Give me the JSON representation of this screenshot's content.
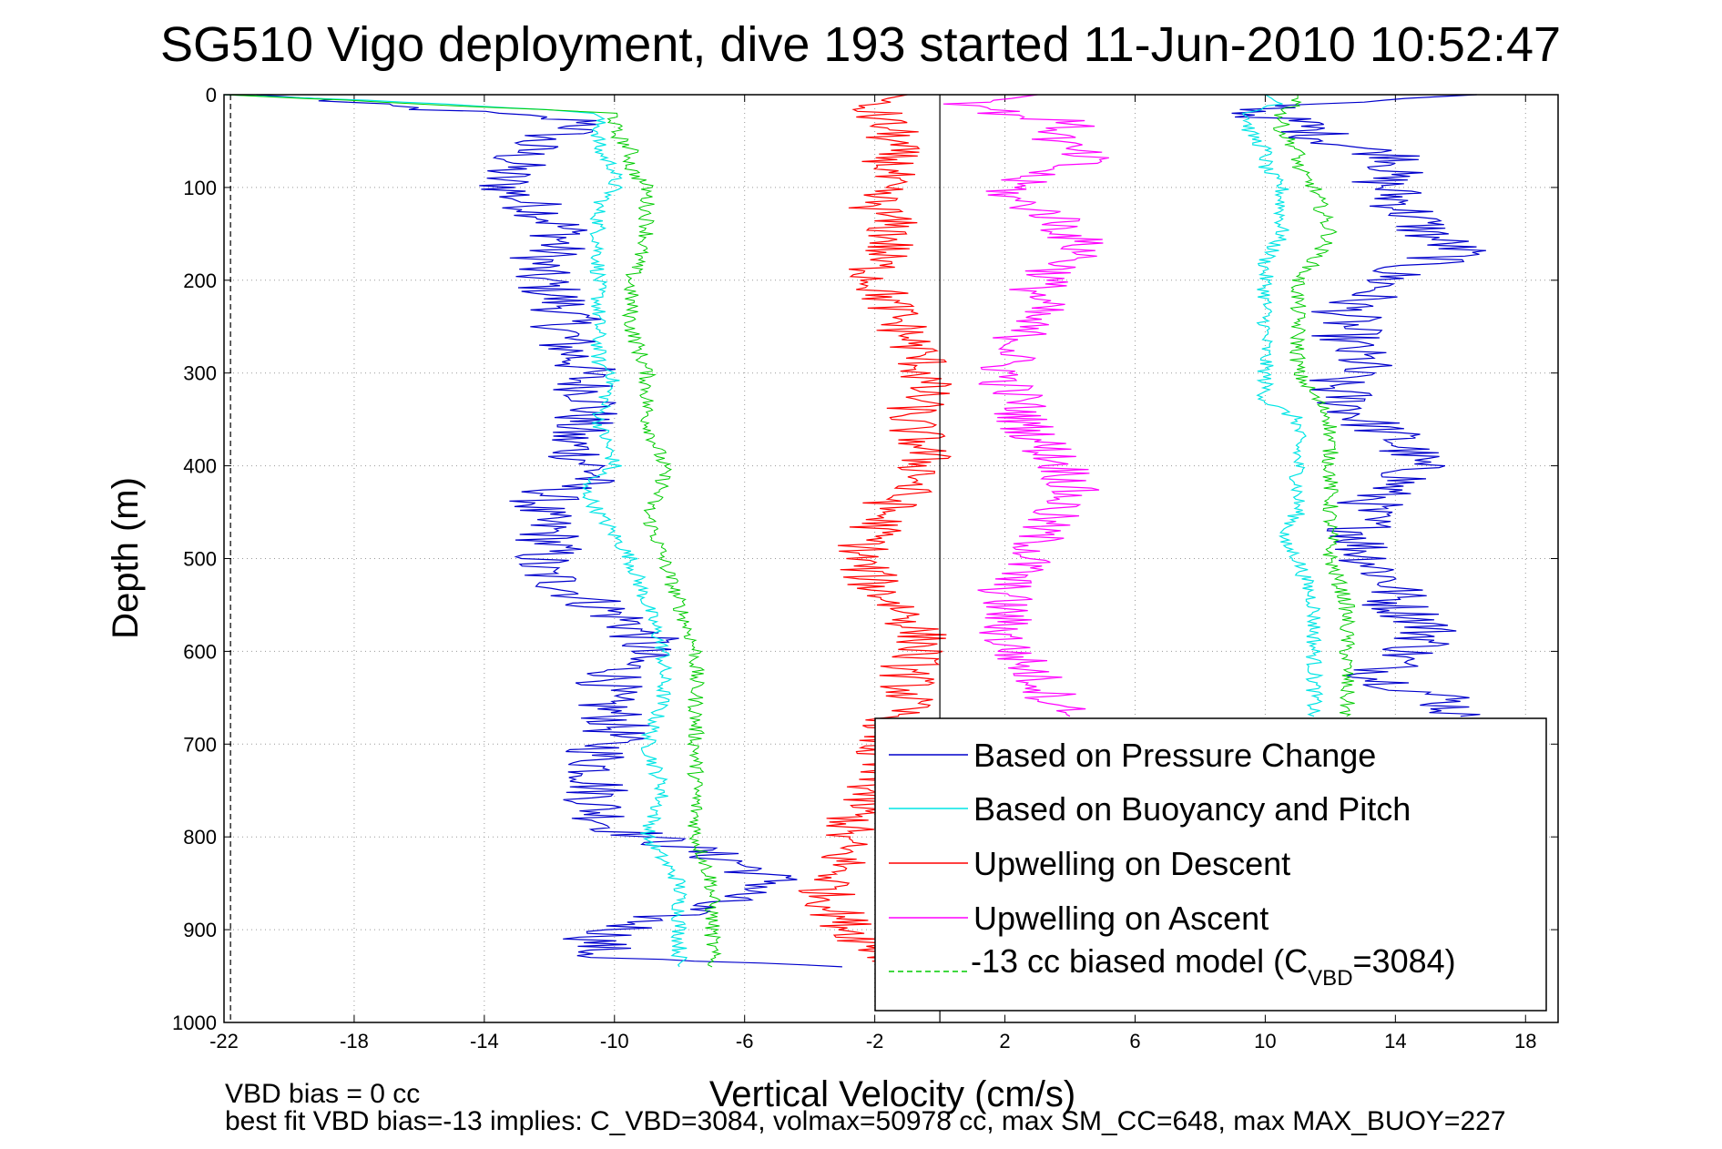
{
  "chart_data": {
    "type": "line",
    "title": "SG510 Vigo deployment, dive 193 started 11-Jun-2010 10:52:47",
    "xlabel": "Vertical Velocity (cm/s)",
    "ylabel": "Depth (m)",
    "xlim": [
      -22,
      19
    ],
    "ylim": [
      0,
      1000
    ],
    "y_reversed": true,
    "grid": true,
    "x_ticks": [
      -22,
      -18,
      -14,
      -10,
      -6,
      -2,
      2,
      6,
      10,
      14,
      18
    ],
    "y_ticks": [
      0,
      100,
      200,
      300,
      400,
      500,
      600,
      700,
      800,
      900,
      1000
    ],
    "legend_position": "bottom-right",
    "legend": {
      "pressure": "Based on Pressure Change",
      "buoyancy": "Based on Buoyancy and Pitch",
      "upwell_desc": "Upwelling on Descent",
      "upwell_asc": "Upwelling on Ascent",
      "model_prefix": "-13 cc biased model (C",
      "model_sub": "VBD",
      "model_suffix": "=3084)"
    },
    "footer": {
      "line1": "VBD bias = 0 cc",
      "line2": "best fit VBD bias=-13 implies: C_VBD=3084, volmax=50978 cc, max SM_CC=648, max MAX_BUOY=227"
    },
    "reference_lines": [
      {
        "name": "zero",
        "x": 0,
        "style": "solid"
      },
      {
        "name": "left-limit",
        "x": -21.8,
        "style": "dashed"
      }
    ],
    "colors": {
      "pressure": "#0000cc",
      "buoyancy": "#00e5e5",
      "upwell_desc": "#ff0000",
      "upwell_asc": "#ff00ff",
      "model": "#00cc00",
      "grid": "#999999"
    },
    "series": [
      {
        "key": "pressure_descent",
        "name": "Based on Pressure Change",
        "color": "#0000cc",
        "depth": [
          0,
          5,
          10,
          20,
          30,
          50,
          70,
          90,
          110,
          130,
          150,
          170,
          190,
          210,
          230,
          250,
          270,
          290,
          310,
          330,
          350,
          370,
          390,
          410,
          430,
          450,
          470,
          490,
          510,
          530,
          550,
          570,
          590,
          610,
          630,
          650,
          670,
          690,
          710,
          730,
          750,
          770,
          790,
          810,
          830,
          850,
          870,
          890,
          910,
          930,
          940
        ],
        "velocity": [
          -21,
          -19,
          -18,
          -14,
          -10.5,
          -12.5,
          -13,
          -13.5,
          -13,
          -12,
          -11.5,
          -12,
          -12.5,
          -12,
          -11.5,
          -11.5,
          -11.5,
          -11,
          -11,
          -10.5,
          -11,
          -11.5,
          -11,
          -10.5,
          -12,
          -12.5,
          -12,
          -12,
          -12.5,
          -11.5,
          -10.5,
          -9.5,
          -9,
          -9.5,
          -10,
          -10.5,
          -10,
          -10,
          -10.5,
          -10.5,
          -10.5,
          -10.5,
          -10,
          -8,
          -6,
          -5,
          -7,
          -9,
          -10.5,
          -10.5,
          -3
        ]
      },
      {
        "key": "pressure_ascent",
        "name": "",
        "color": "#0000cc",
        "depth": [
          0,
          10,
          20,
          30,
          50,
          70,
          90,
          110,
          130,
          150,
          170,
          190,
          210,
          230,
          250,
          270,
          290,
          310,
          330,
          350,
          370,
          390,
          410,
          430,
          450,
          470,
          490,
          510,
          530,
          550,
          570,
          590,
          610,
          630,
          650,
          670
        ],
        "velocity": [
          16.5,
          11,
          9.5,
          11,
          12,
          14.5,
          13.5,
          14,
          14.5,
          15,
          16,
          14,
          13.5,
          12.5,
          12.5,
          12.5,
          13,
          12,
          12.5,
          13,
          14,
          14.5,
          14.5,
          13.5,
          13,
          13,
          13,
          13.5,
          14,
          14,
          15,
          15,
          14,
          13.5,
          15.5,
          16
        ]
      },
      {
        "key": "buoyancy_descent",
        "name": "Based on Buoyancy and Pitch",
        "color": "#00e5e5",
        "depth": [
          0,
          10,
          20,
          40,
          60,
          80,
          100,
          120,
          150,
          180,
          200,
          250,
          290,
          300,
          350,
          400,
          420,
          450,
          500,
          550,
          600,
          650,
          700,
          750,
          800,
          850,
          900,
          940
        ],
        "velocity": [
          -22,
          -15,
          -10.5,
          -10.5,
          -10.5,
          -10,
          -10,
          -10.5,
          -10.5,
          -10.5,
          -10.5,
          -10.5,
          -10.5,
          -10,
          -10.5,
          -10,
          -11,
          -10.5,
          -9.5,
          -9,
          -8.5,
          -8.5,
          -9,
          -8.5,
          -9,
          -8,
          -8,
          -8
        ]
      },
      {
        "key": "buoyancy_ascent",
        "name": "",
        "color": "#00e5e5",
        "depth": [
          0,
          10,
          20,
          40,
          60,
          80,
          100,
          150,
          180,
          200,
          250,
          300,
          330,
          350,
          400,
          450,
          480,
          500,
          550,
          600,
          650,
          670
        ],
        "velocity": [
          10,
          10.5,
          9.5,
          9.5,
          10,
          10,
          10.5,
          10.5,
          10,
          10,
          10,
          10,
          10,
          11,
          11,
          11,
          10.5,
          11,
          11.5,
          11.5,
          11.5,
          11.5
        ]
      },
      {
        "key": "model_descent",
        "name": "-13 cc biased model (CVBD=3084)",
        "color": "#00cc00",
        "depth": [
          0,
          10,
          20,
          40,
          60,
          80,
          100,
          130,
          150,
          200,
          250,
          300,
          350,
          400,
          420,
          450,
          500,
          550,
          600,
          650,
          700,
          750,
          800,
          850,
          900,
          940
        ],
        "velocity": [
          -22,
          -16,
          -10,
          -10,
          -9.5,
          -9.5,
          -9,
          -9,
          -9,
          -9.5,
          -9.5,
          -9,
          -9,
          -8.5,
          -8.5,
          -9,
          -8.5,
          -8,
          -7.5,
          -7.5,
          -7.5,
          -7.5,
          -7.5,
          -7,
          -7,
          -7
        ]
      },
      {
        "key": "model_ascent",
        "name": "",
        "color": "#00cc00",
        "depth": [
          0,
          10,
          20,
          40,
          60,
          80,
          100,
          150,
          180,
          200,
          250,
          300,
          350,
          400,
          450,
          500,
          550,
          600,
          650,
          670
        ],
        "velocity": [
          11,
          11,
          10.5,
          10.5,
          11,
          11,
          11.5,
          12,
          11.5,
          11,
          11,
          11,
          12,
          12,
          12,
          12,
          12.5,
          12.5,
          12.5,
          12.5
        ]
      },
      {
        "key": "upwelling_descent",
        "name": "Upwelling on Descent",
        "color": "#ff0000",
        "depth": [
          0,
          10,
          20,
          40,
          60,
          80,
          100,
          120,
          140,
          160,
          180,
          200,
          230,
          260,
          290,
          320,
          350,
          380,
          410,
          440,
          470,
          500,
          530,
          560,
          590,
          620,
          650,
          680,
          710,
          740,
          770,
          800,
          830,
          860,
          890,
          920,
          940
        ],
        "velocity": [
          -1,
          -2.5,
          -2,
          -1.5,
          -1.5,
          -1.5,
          -2,
          -2,
          -1.5,
          -1.5,
          -2,
          -2,
          -1.5,
          -1,
          -0.5,
          -0.5,
          -1,
          -0.5,
          -0.5,
          -1.5,
          -2,
          -2.5,
          -2,
          -1,
          -0.5,
          -1,
          -1,
          -1.5,
          -2,
          -2,
          -2.5,
          -3,
          -3,
          -3.5,
          -3,
          -2,
          -1
        ]
      },
      {
        "key": "upwelling_ascent",
        "name": "Upwelling on Ascent",
        "color": "#ff00ff",
        "depth": [
          0,
          10,
          20,
          30,
          50,
          70,
          90,
          110,
          130,
          150,
          170,
          190,
          210,
          230,
          250,
          270,
          290,
          310,
          330,
          350,
          370,
          390,
          410,
          430,
          450,
          470,
          490,
          510,
          530,
          550,
          570,
          590,
          610,
          630,
          650,
          670
        ],
        "velocity": [
          3,
          1,
          2,
          4,
          3.5,
          4.5,
          2.5,
          2,
          3.5,
          4,
          4.5,
          3.5,
          3,
          3,
          2.5,
          2.5,
          2,
          2,
          2.5,
          2.5,
          3,
          3.5,
          4,
          4,
          3.5,
          3,
          3,
          2.5,
          2,
          2,
          2,
          2,
          2.5,
          3,
          3.5,
          4
        ]
      }
    ]
  }
}
